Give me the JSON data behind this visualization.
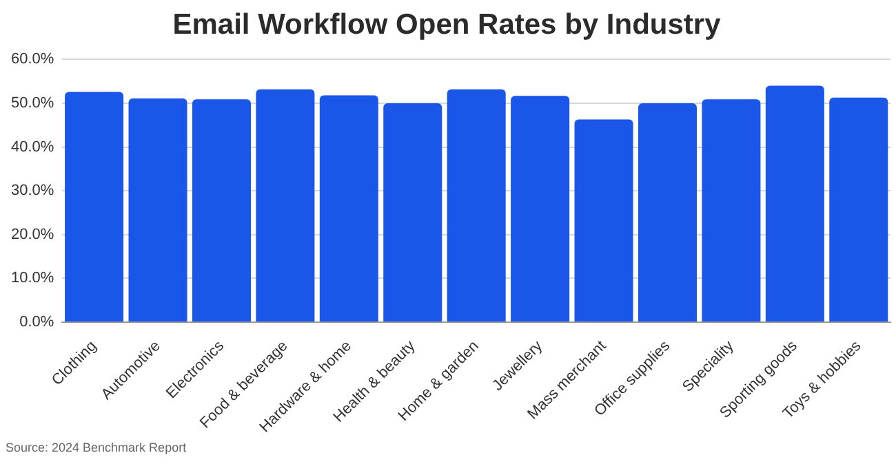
{
  "chart_data": {
    "type": "bar",
    "title": "Email Workflow Open Rates by Industry",
    "categories": [
      "Clothing",
      "Automotive",
      "Electronics",
      "Food & beverage",
      "Hardware & home",
      "Health & beauty",
      "Home & garden",
      "Jewellery",
      "Mass merchant",
      "Office supplies",
      "Speciality",
      "Sporting goods",
      "Toys & hobbies"
    ],
    "values": [
      52.6,
      51.1,
      50.9,
      53.2,
      51.8,
      50.0,
      53.2,
      51.7,
      46.3,
      50.0,
      50.9,
      54.0,
      51.3
    ],
    "color": "#1a56e8",
    "ylim": [
      0,
      60
    ],
    "yticks": [
      {
        "value": 0,
        "label": "0.0%"
      },
      {
        "value": 10,
        "label": "10.0%"
      },
      {
        "value": 20,
        "label": "20.0%"
      },
      {
        "value": 30,
        "label": "30.0%"
      },
      {
        "value": 40,
        "label": "40.0%"
      },
      {
        "value": 50,
        "label": "50.0%"
      },
      {
        "value": 60,
        "label": "60.0%"
      }
    ],
    "grid": "y",
    "annotations": [
      "Source: 2024 Benchmark Report"
    ]
  }
}
